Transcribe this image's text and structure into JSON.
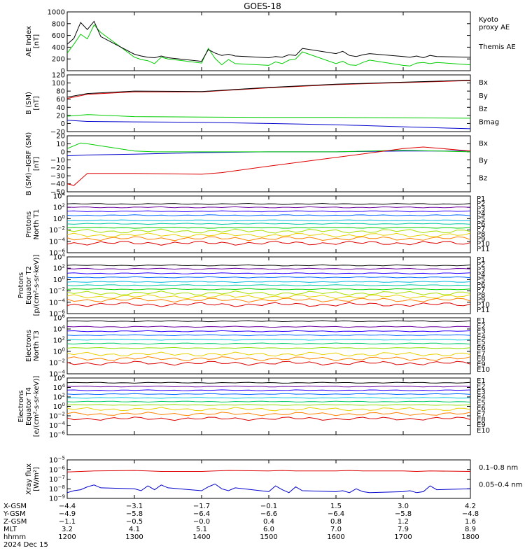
{
  "title": "GOES-18",
  "colors": {
    "black": "#000000",
    "red": "#dd0000",
    "green": "#00cc00",
    "blue": "#0000cc",
    "p": [
      "#000000",
      "#6a00a0",
      "#2a00ff",
      "#0066ff",
      "#00b8e0",
      "#00c8a0",
      "#00d000",
      "#a8e000",
      "#e8d000",
      "#ff8000",
      "#dd0000",
      "#a00000"
    ],
    "e": [
      "#000000",
      "#6a00a0",
      "#2a00ff",
      "#0066ff",
      "#00c8e0",
      "#00cc66",
      "#90e000",
      "#e8d000",
      "#ff8000",
      "#dd0000"
    ]
  },
  "chart_data": [
    {
      "type": "line",
      "panel": "ae",
      "ylabel_lines": [
        "AE Index",
        "[nT]"
      ],
      "ylim": [
        0,
        1000
      ],
      "ticks": [
        "1000",
        "800",
        "600",
        "400",
        "200",
        "0"
      ],
      "series": [
        {
          "name": "Kyoto proxy AE",
          "name_lines": [
            "Kyoto",
            "proxy AE"
          ],
          "color": "green",
          "x": [
            1200,
            1210,
            1220,
            1230,
            1240,
            1250,
            1300,
            1310,
            1320,
            1330,
            1340,
            1350,
            1400,
            1410,
            1420,
            1430,
            1440,
            1450,
            1500,
            1510,
            1520,
            1530,
            1540,
            1550,
            1600,
            1610,
            1620,
            1630,
            1640,
            1650,
            1700,
            1710,
            1720,
            1730,
            1740,
            1750,
            1800
          ],
          "y": [
            300,
            450,
            620,
            540,
            780,
            650,
            230,
            190,
            170,
            120,
            230,
            200,
            130,
            380,
            210,
            100,
            190,
            120,
            90,
            150,
            120,
            180,
            200,
            320,
            120,
            160,
            100,
            90,
            140,
            180,
            90,
            80,
            130,
            140,
            120,
            140,
            100
          ]
        },
        {
          "name": "Themis AE",
          "name_lines": [
            "Themis AE"
          ],
          "color": "black",
          "x": [
            1200,
            1210,
            1220,
            1230,
            1240,
            1250,
            1300,
            1310,
            1320,
            1330,
            1340,
            1350,
            1400,
            1410,
            1420,
            1430,
            1440,
            1450,
            1500,
            1510,
            1520,
            1530,
            1540,
            1550,
            1600,
            1610,
            1620,
            1630,
            1640,
            1650,
            1700,
            1710,
            1720,
            1730,
            1740,
            1750,
            1800
          ],
          "y": [
            450,
            550,
            820,
            700,
            840,
            580,
            280,
            250,
            230,
            220,
            250,
            220,
            160,
            360,
            300,
            260,
            280,
            250,
            220,
            240,
            230,
            270,
            260,
            380,
            290,
            330,
            260,
            240,
            270,
            290,
            240,
            230,
            250,
            220,
            260,
            240,
            230
          ]
        }
      ]
    },
    {
      "type": "line",
      "panel": "bsm",
      "ylabel_lines": [
        "B (SM)",
        "[nT]"
      ],
      "ylim": [
        -20,
        120
      ],
      "ticks": [
        "120",
        "100",
        "80",
        "60",
        "40",
        "20",
        "0",
        "−20"
      ],
      "series": [
        {
          "name": "Bx",
          "color": "blue",
          "x": [
            1200,
            1230,
            1300,
            1400,
            1500,
            1600,
            1700,
            1800
          ],
          "y": [
            8,
            5,
            4,
            3,
            0,
            -3,
            -8,
            -13
          ]
        },
        {
          "name": "By",
          "color": "green",
          "x": [
            1200,
            1230,
            1300,
            1400,
            1500,
            1600,
            1700,
            1800
          ],
          "y": [
            18,
            22,
            17,
            16,
            15,
            15,
            14,
            13
          ]
        },
        {
          "name": "Bz",
          "color": "red",
          "x": [
            1200,
            1230,
            1300,
            1400,
            1500,
            1600,
            1700,
            1800
          ],
          "y": [
            62,
            72,
            78,
            78,
            88,
            96,
            101,
            106
          ]
        },
        {
          "name": "Bmag",
          "color": "black",
          "x": [
            1200,
            1230,
            1300,
            1400,
            1500,
            1600,
            1700,
            1800
          ],
          "y": [
            65,
            74,
            80,
            79,
            89,
            97,
            102,
            107
          ]
        }
      ]
    },
    {
      "type": "line",
      "panel": "bigrf",
      "ylabel_lines": [
        "B (SM)−IGRF (SM)",
        "[nT]"
      ],
      "ylim": [
        -50,
        20
      ],
      "ticks": [
        "20",
        "10",
        "0",
        "−10",
        "−20",
        "−30",
        "−40",
        "−50"
      ],
      "series": [
        {
          "name": "Bx",
          "color": "blue",
          "x": [
            1200,
            1230,
            1300,
            1400,
            1500,
            1600,
            1700,
            1800
          ],
          "y": [
            -5,
            -4,
            -3,
            -1,
            0,
            0,
            1,
            1
          ]
        },
        {
          "name": "By",
          "color": "green",
          "x": [
            1200,
            1220,
            1230,
            1300,
            1330,
            1400,
            1500,
            1600,
            1700,
            1800
          ],
          "y": [
            4,
            11,
            10,
            1,
            0,
            0,
            0,
            0,
            2,
            0
          ]
        },
        {
          "name": "Bz",
          "color": "red",
          "x": [
            1200,
            1210,
            1230,
            1300,
            1400,
            1430,
            1500,
            1600,
            1700,
            1730,
            1800
          ],
          "y": [
            -40,
            -42,
            -27,
            -27,
            -28,
            -26,
            -18,
            -7,
            4,
            6,
            1
          ]
        }
      ]
    },
    {
      "type": "line",
      "panel": "pn",
      "scale": "log",
      "ylabel_lines": [
        "Protons",
        "North T1"
      ],
      "ylim": [
        -6,
        4
      ],
      "ticks": [
        {
          "e": "4"
        },
        {
          "e": "2"
        },
        {
          "e": "0"
        },
        {
          "e": "−2"
        },
        {
          "e": "−4"
        },
        {
          "e": "−6"
        }
      ],
      "labels": [
        "P1",
        "P2",
        "P3",
        "P4",
        "P5",
        "P6",
        "P7",
        "P8",
        "P9",
        "P10",
        "P11"
      ],
      "levels": [
        2.6,
        2.0,
        1.3,
        0.6,
        -0.3,
        -0.9,
        -1.6,
        -2.2,
        -2.9,
        -3.5,
        -4.3
      ]
    },
    {
      "type": "line",
      "panel": "pe",
      "scale": "log",
      "ylabel_lines": [
        "Protons",
        "Equator T2",
        "[p/(cm²-s-sr-keV)]"
      ],
      "ylim": [
        -6,
        4
      ],
      "ticks": [
        {
          "e": "4"
        },
        {
          "e": "2"
        },
        {
          "e": "0"
        },
        {
          "e": "−2"
        },
        {
          "e": "−4"
        },
        {
          "e": "−6"
        }
      ],
      "labels": [
        "P1",
        "P2",
        "P3",
        "P4",
        "P5",
        "P6",
        "P7",
        "P8",
        "P9",
        "P10",
        "P11"
      ],
      "levels": [
        2.5,
        1.9,
        1.1,
        0.4,
        -0.4,
        -1.0,
        -1.7,
        -2.4,
        -3.0,
        -3.6,
        -4.4
      ]
    },
    {
      "type": "line",
      "panel": "en",
      "scale": "log",
      "ylabel_lines": [
        "Electrons",
        "North T3"
      ],
      "ylim": [
        -4,
        6
      ],
      "ticks": [
        {
          "e": "6"
        },
        {
          "e": "4"
        },
        {
          "e": "2"
        },
        {
          "e": "0"
        },
        {
          "e": "−2"
        },
        {
          "e": "−4"
        }
      ],
      "labels": [
        "E1",
        "E2",
        "E3",
        "E4",
        "E5",
        "E6",
        "E7",
        "E8",
        "E9",
        "E10"
      ],
      "levels": [
        5.4,
        4.4,
        3.6,
        2.9,
        2.1,
        1.4,
        0.6,
        -0.5,
        -1.3,
        -2.1
      ]
    },
    {
      "type": "line",
      "panel": "ee",
      "scale": "log",
      "ylabel_lines": [
        "Electrons",
        "Equator T4",
        "[e/(cm²-s-sr-keV)]"
      ],
      "ylim": [
        -6,
        6
      ],
      "ticks": [
        {
          "e": "6"
        },
        {
          "e": "4"
        },
        {
          "e": "2"
        },
        {
          "e": "0"
        },
        {
          "e": "−2"
        },
        {
          "e": "−4"
        },
        {
          "e": "−6"
        }
      ],
      "labels": [
        "E1",
        "E2",
        "E3",
        "E4",
        "E5",
        "E6",
        "E7",
        "E8",
        "E9",
        "E10"
      ],
      "levels": [
        5.0,
        4.2,
        3.4,
        2.6,
        1.8,
        1.0,
        0.3,
        -0.6,
        -1.6,
        -2.6
      ]
    },
    {
      "type": "line",
      "panel": "xray",
      "scale": "log",
      "ylabel_lines": [
        "Xray flux",
        "[W/m²]"
      ],
      "ylim": [
        -9,
        -5
      ],
      "ticks": [
        {
          "e": "−5"
        },
        {
          "e": "−6"
        },
        {
          "e": "−7"
        },
        {
          "e": "−8"
        },
        {
          "e": "−9"
        }
      ],
      "series": [
        {
          "name": "0.1–0.8 nm",
          "color": "red",
          "x": [
            1200,
            1220,
            1240,
            1300,
            1320,
            1340,
            1400,
            1420,
            1440,
            1500,
            1520,
            1540,
            1600,
            1620,
            1640,
            1700,
            1720,
            1740,
            1800
          ],
          "y": [
            -6.25,
            -6.2,
            -6.15,
            -6.1,
            -6.15,
            -6.2,
            -6.2,
            -6.15,
            -6.1,
            -6.15,
            -6.1,
            -6.15,
            -6.15,
            -6.1,
            -6.15,
            -6.15,
            -6.2,
            -6.15,
            -6.2
          ]
        },
        {
          "name": "0.05–0.4 nm",
          "color": "blue",
          "x": [
            1200,
            1210,
            1220,
            1230,
            1240,
            1250,
            1300,
            1310,
            1320,
            1330,
            1340,
            1350,
            1400,
            1410,
            1420,
            1430,
            1440,
            1450,
            1500,
            1510,
            1520,
            1530,
            1540,
            1550,
            1600,
            1610,
            1620,
            1630,
            1640,
            1650,
            1700,
            1710,
            1720,
            1730,
            1740,
            1750,
            1800
          ],
          "y": [
            -8.4,
            -8.2,
            -8.1,
            -7.8,
            -7.6,
            -7.9,
            -8.0,
            -8.2,
            -7.7,
            -8.1,
            -7.6,
            -7.9,
            -8.2,
            -7.8,
            -7.5,
            -8.0,
            -8.2,
            -7.9,
            -8.3,
            -7.7,
            -8.1,
            -8.4,
            -7.8,
            -8.2,
            -8.3,
            -8.2,
            -8.4,
            -8.0,
            -8.3,
            -8.4,
            -8.3,
            -8.2,
            -8.4,
            -8.3,
            -7.7,
            -8.1,
            -8.0
          ]
        }
      ]
    }
  ],
  "xaxis": {
    "xlim": [
      1200,
      1800
    ],
    "rows": [
      {
        "label": "X-GSM",
        "values": [
          "−4.4",
          "−3.1",
          "−1.7",
          "−0.1",
          "1.5",
          "3.0",
          "4.2"
        ]
      },
      {
        "label": "Y-GSM",
        "values": [
          "−4.9",
          "−5.8",
          "−6.4",
          "−6.6",
          "−6.4",
          "−5.8",
          "−4.8"
        ]
      },
      {
        "label": "Z-GSM",
        "values": [
          "−1.1",
          "−0.5",
          "−0.0",
          "0.4",
          "0.8",
          "1.2",
          "1.6"
        ]
      },
      {
        "label": "MLT",
        "values": [
          "3.2",
          "4.1",
          "5.1",
          "6.0",
          "7.0",
          "7.9",
          "8.9"
        ]
      },
      {
        "label": "hhmm",
        "values": [
          "1200",
          "1300",
          "1400",
          "1500",
          "1600",
          "1700",
          "1800"
        ]
      }
    ],
    "date": "2024 Dec 15"
  }
}
